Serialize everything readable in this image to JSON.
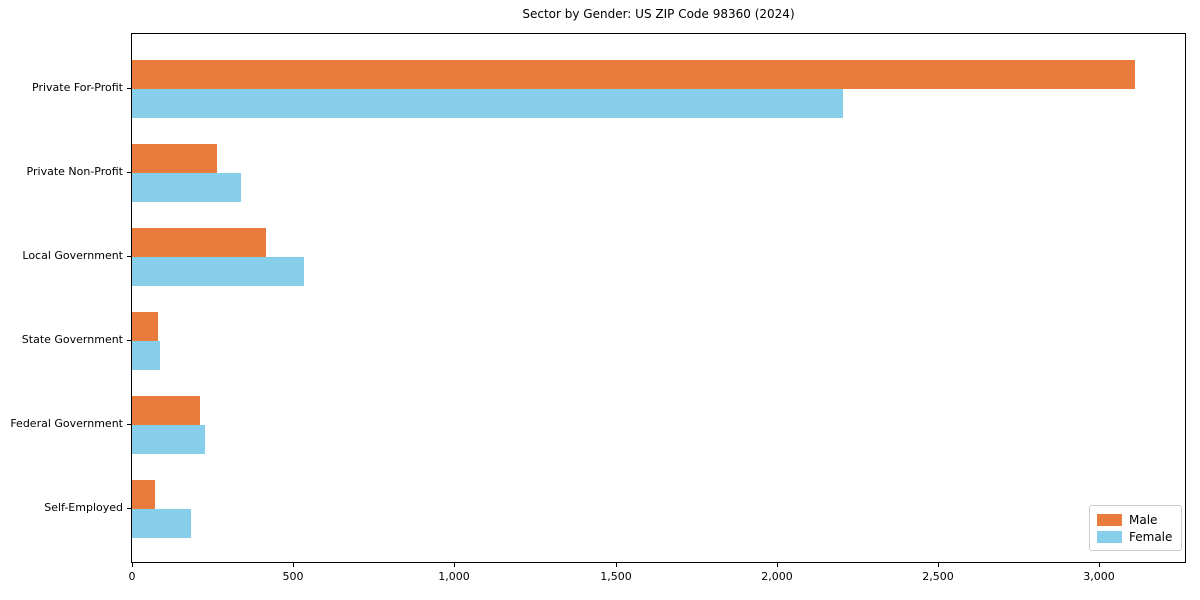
{
  "title": "Sector by Gender: US ZIP Code 98360 (2024)",
  "chart_data": {
    "type": "bar",
    "orientation": "horizontal",
    "title": "Sector by Gender: US ZIP Code 98360 (2024)",
    "categories": [
      "Private For-Profit",
      "Private Non-Profit",
      "Local Government",
      "State Government",
      "Federal Government",
      "Self-Employed"
    ],
    "series": [
      {
        "name": "Male",
        "color": "#e97c3d",
        "values": [
          3110,
          263,
          415,
          80,
          212,
          71
        ]
      },
      {
        "name": "Female",
        "color": "#87ceeb",
        "values": [
          2205,
          337,
          532,
          87,
          227,
          183
        ]
      }
    ],
    "xlabel": "",
    "ylabel": "",
    "xlim": [
      0,
      3266
    ],
    "xticks": [
      0,
      500,
      1000,
      1500,
      2000,
      2500,
      3000
    ],
    "xtick_labels": [
      "0",
      "500",
      "1,000",
      "1,500",
      "2,000",
      "2,500",
      "3,000"
    ],
    "grid": false,
    "legend_position": "lower right",
    "spines": "box"
  }
}
